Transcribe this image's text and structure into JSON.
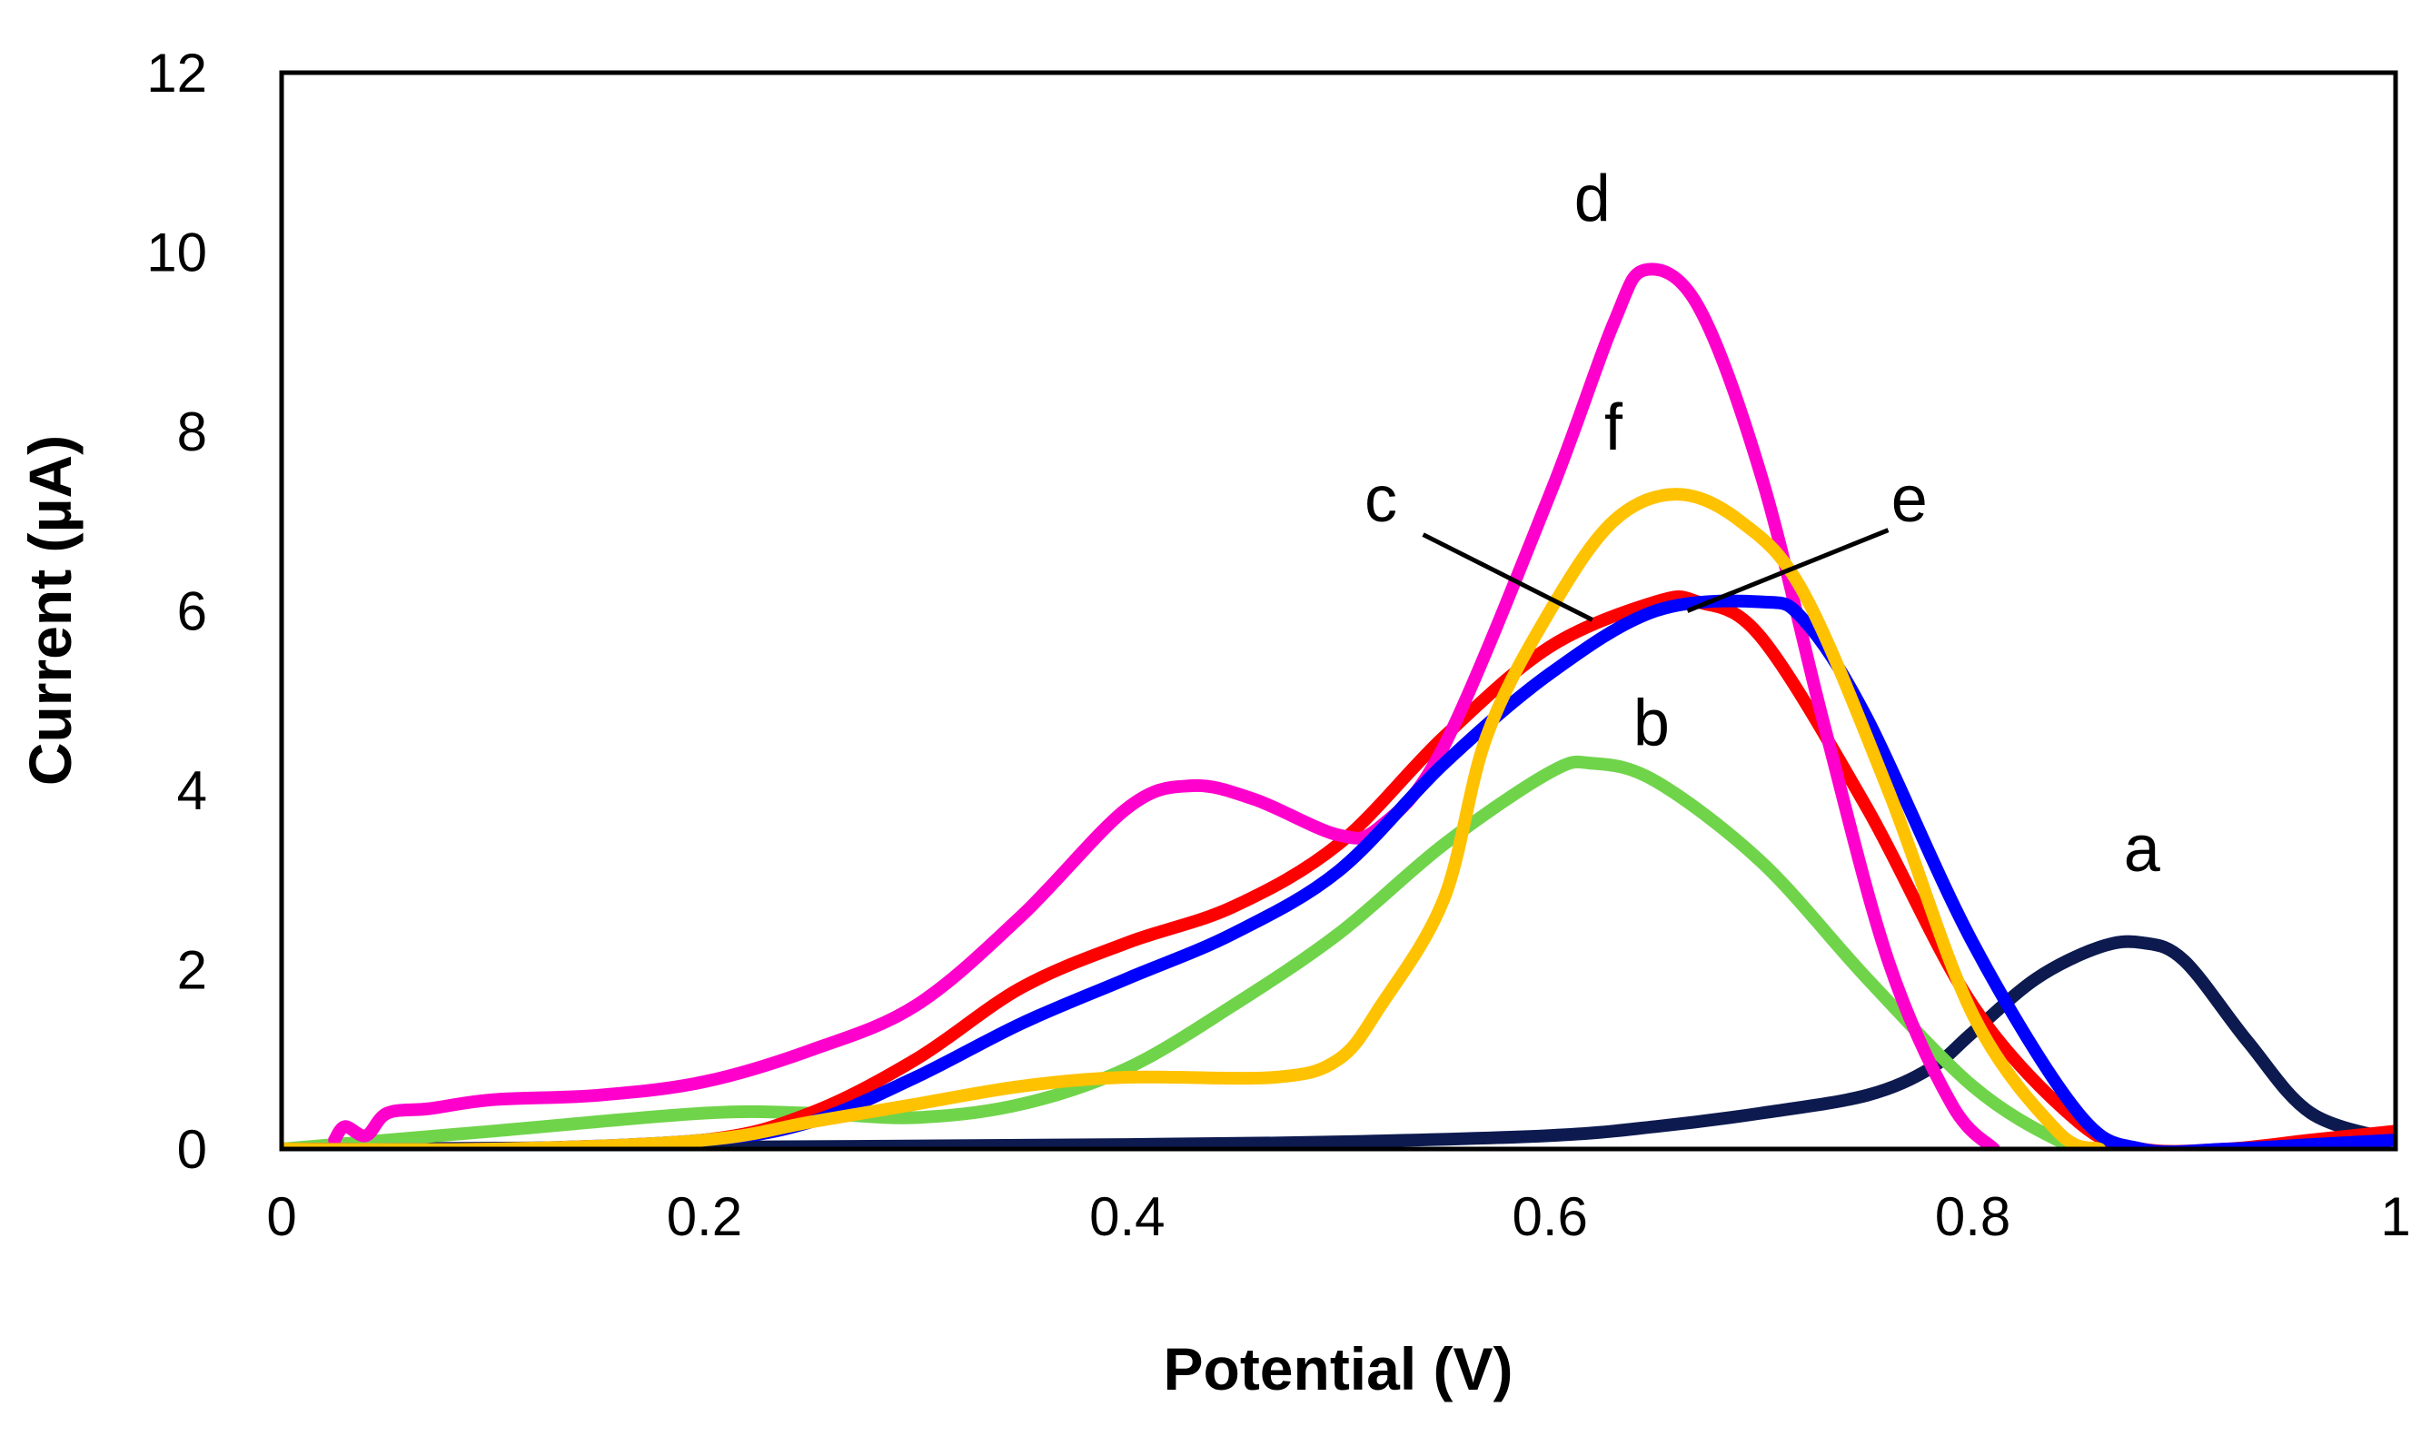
{
  "chart_data": {
    "type": "line",
    "title": "",
    "xlabel": "Potential (V)",
    "ylabel": "Current (µA)",
    "xlim": [
      0,
      1
    ],
    "ylim": [
      0,
      12
    ],
    "xticks": [
      0,
      0.2,
      0.4,
      0.6,
      0.8,
      1
    ],
    "xtick_labels": [
      "0",
      "0.2",
      "0.4",
      "0.6",
      "0.8",
      "1"
    ],
    "yticks": [
      0,
      2,
      4,
      6,
      8,
      10,
      12
    ],
    "ytick_labels": [
      "0",
      "2",
      "4",
      "6",
      "8",
      "10",
      "12"
    ],
    "grid": false,
    "legend": "none",
    "series": [
      {
        "name": "a",
        "color": "#0d1a4f",
        "x": [
          0,
          0.2,
          0.4,
          0.5,
          0.6,
          0.65,
          0.7,
          0.75,
          0.78,
          0.8,
          0.83,
          0.86,
          0.88,
          0.9,
          0.93,
          0.96,
          1.0
        ],
        "y": [
          0,
          0.02,
          0.05,
          0.08,
          0.15,
          0.25,
          0.4,
          0.6,
          0.9,
          1.3,
          1.9,
          2.25,
          2.3,
          2.1,
          1.2,
          0.4,
          0.1
        ]
      },
      {
        "name": "b",
        "color": "#70d44b",
        "x": [
          0,
          0.1,
          0.2,
          0.25,
          0.3,
          0.35,
          0.4,
          0.45,
          0.5,
          0.55,
          0.6,
          0.62,
          0.65,
          0.7,
          0.75,
          0.8,
          0.84,
          0.86
        ],
        "y": [
          0,
          0.2,
          0.4,
          0.4,
          0.35,
          0.5,
          0.9,
          1.6,
          2.4,
          3.4,
          4.2,
          4.3,
          4.1,
          3.2,
          1.9,
          0.7,
          0.1,
          0
        ]
      },
      {
        "name": "c",
        "color": "#ff0000",
        "x": [
          0,
          0.1,
          0.2,
          0.25,
          0.3,
          0.35,
          0.4,
          0.45,
          0.5,
          0.55,
          0.6,
          0.65,
          0.67,
          0.7,
          0.75,
          0.8,
          0.85,
          0.88,
          0.92,
          0.96,
          1.0
        ],
        "y": [
          0,
          0,
          0.1,
          0.4,
          1.0,
          1.8,
          2.3,
          2.7,
          3.4,
          4.6,
          5.6,
          6.1,
          6.1,
          5.7,
          3.8,
          1.6,
          0.3,
          0,
          0,
          0.1,
          0.2
        ]
      },
      {
        "name": "d",
        "color": "#ff00cc",
        "x": [
          0.025,
          0.03,
          0.04,
          0.05,
          0.07,
          0.1,
          0.15,
          0.2,
          0.25,
          0.3,
          0.35,
          0.4,
          0.43,
          0.46,
          0.5,
          0.52,
          0.55,
          0.6,
          0.63,
          0.645,
          0.67,
          0.7,
          0.73,
          0.76,
          0.79,
          0.81
        ],
        "y": [
          0.1,
          0.25,
          0.15,
          0.4,
          0.45,
          0.55,
          0.6,
          0.75,
          1.1,
          1.6,
          2.6,
          3.8,
          4.05,
          3.9,
          3.5,
          3.6,
          4.5,
          7.3,
          9.2,
          9.8,
          9.4,
          7.5,
          4.7,
          2.1,
          0.5,
          0
        ]
      },
      {
        "name": "e",
        "color": "#0000ff",
        "x": [
          0,
          0.1,
          0.2,
          0.25,
          0.3,
          0.35,
          0.4,
          0.45,
          0.5,
          0.55,
          0.6,
          0.65,
          0.7,
          0.72,
          0.75,
          0.8,
          0.85,
          0.88,
          0.92,
          0.96,
          1.0
        ],
        "y": [
          0,
          0,
          0.1,
          0.3,
          0.8,
          1.4,
          1.9,
          2.4,
          3.1,
          4.3,
          5.3,
          6.0,
          6.1,
          5.9,
          4.8,
          2.3,
          0.4,
          0,
          0,
          0.05,
          0.1
        ]
      },
      {
        "name": "f",
        "color": "#ffc200",
        "x": [
          0,
          0.1,
          0.2,
          0.25,
          0.3,
          0.35,
          0.4,
          0.47,
          0.5,
          0.52,
          0.55,
          0.57,
          0.6,
          0.63,
          0.66,
          0.69,
          0.72,
          0.76,
          0.8,
          0.84,
          0.86
        ],
        "y": [
          0,
          0,
          0.1,
          0.3,
          0.5,
          0.7,
          0.8,
          0.8,
          1.0,
          1.6,
          2.8,
          4.6,
          6.0,
          7.0,
          7.3,
          7.0,
          6.2,
          4.0,
          1.5,
          0.2,
          0
        ]
      }
    ],
    "annotations": [
      {
        "id": "a",
        "text": "a",
        "x": 0.88,
        "y": 3.1
      },
      {
        "id": "b",
        "text": "b",
        "x": 0.648,
        "y": 4.5
      },
      {
        "id": "c",
        "text": "c",
        "x": 0.52,
        "y": 7.0,
        "pointer": [
          0.54,
          6.85,
          0.62,
          5.9
        ]
      },
      {
        "id": "d",
        "text": "d",
        "x": 0.62,
        "y": 10.35
      },
      {
        "id": "e",
        "text": "e",
        "x": 0.77,
        "y": 7.0,
        "pointer": [
          0.76,
          6.9,
          0.665,
          6.0
        ]
      },
      {
        "id": "f",
        "text": "f",
        "x": 0.63,
        "y": 7.8
      }
    ]
  }
}
